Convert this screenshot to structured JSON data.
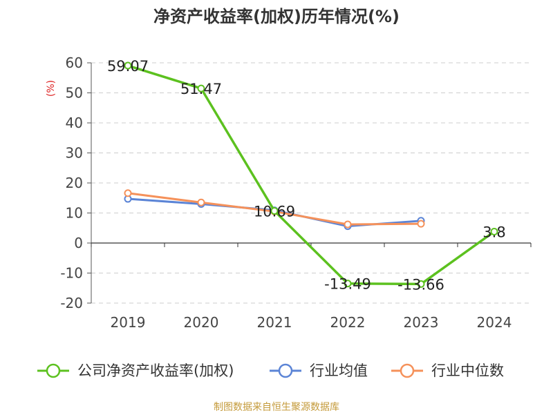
{
  "chart_data": {
    "type": "line",
    "title": "净资产收益率(加权)历年情况(%)",
    "ylabel": "(%)",
    "xlabel": "",
    "categories": [
      "2019",
      "2020",
      "2021",
      "2022",
      "2023",
      "2024"
    ],
    "ylim": [
      -20,
      60
    ],
    "yticks": [
      60,
      50,
      40,
      30,
      20,
      10,
      0,
      -10,
      -20
    ],
    "grid": true,
    "legend_position": "bottom",
    "series": [
      {
        "name": "公司净资产收益率(加权)",
        "color": "#5cc11f",
        "values": [
          59.07,
          51.47,
          10.69,
          -13.49,
          -13.66,
          3.8
        ],
        "labels": [
          "59.07",
          "51.47",
          "10.69",
          "-13.49",
          "-13.66",
          "3.8"
        ]
      },
      {
        "name": "行业均值",
        "color": "#5b84d6",
        "values": [
          14.7,
          13.0,
          10.9,
          5.6,
          7.4,
          null
        ]
      },
      {
        "name": "行业中位数",
        "color": "#f5915a",
        "values": [
          16.6,
          13.5,
          10.5,
          6.2,
          6.4,
          null
        ]
      }
    ],
    "source": "制图数据来自恒生聚源数据库"
  }
}
